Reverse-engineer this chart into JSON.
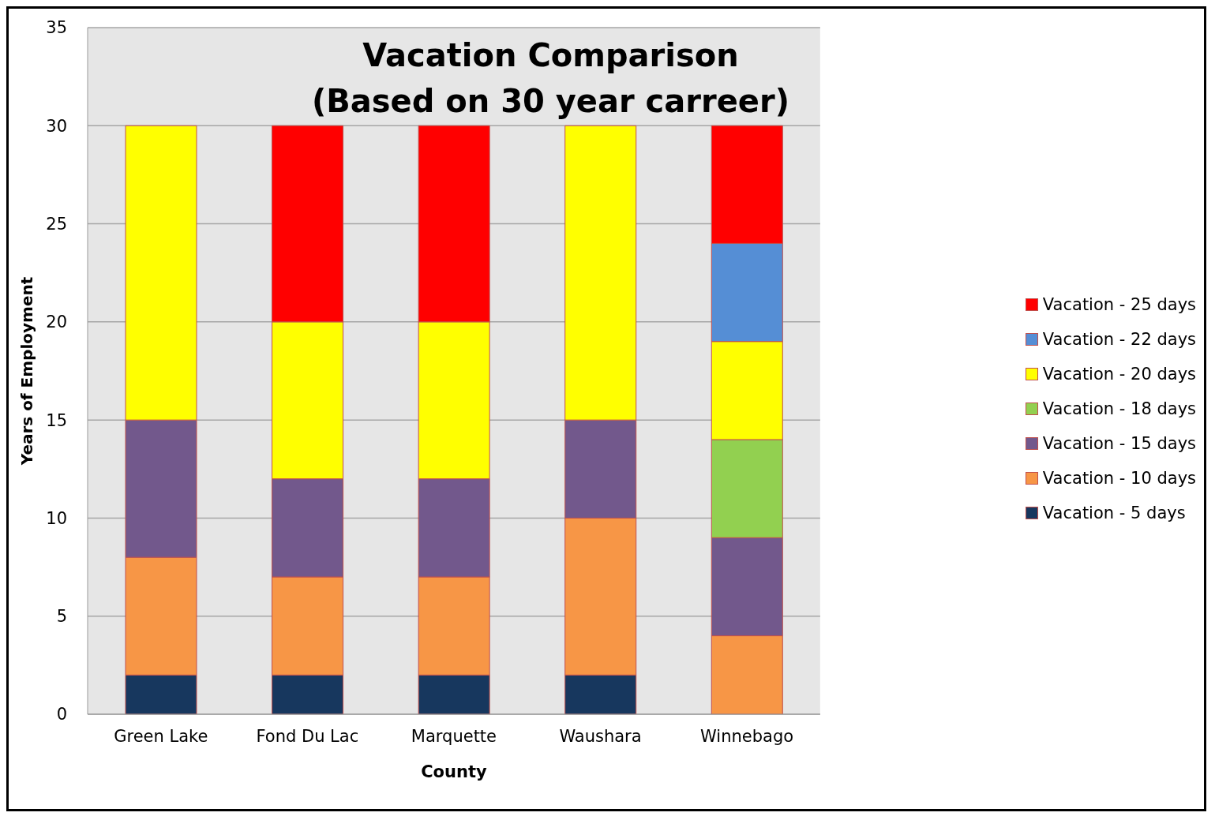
{
  "chart_data": {
    "type": "bar",
    "title": "Vacation Comparison\n(Based on 30 year carreer)",
    "xlabel": "County",
    "ylabel": "Years of Employment",
    "categories": [
      "Green Lake",
      "Fond Du Lac",
      "Marquette",
      "Waushara",
      "Winnebago"
    ],
    "stacked": true,
    "ylim": [
      0,
      35
    ],
    "yticks": [
      0,
      5,
      10,
      15,
      20,
      25,
      30,
      35
    ],
    "grid": "y",
    "legend": "right",
    "series": [
      {
        "name": "Vacation - 5 days",
        "color": "#17375e",
        "values": [
          2,
          2,
          2,
          2,
          null
        ]
      },
      {
        "name": "Vacation - 10 days",
        "color": "#f79646",
        "values": [
          6,
          5,
          5,
          8,
          4
        ]
      },
      {
        "name": "Vacation - 15 days",
        "color": "#72588c",
        "values": [
          7,
          5,
          5,
          5,
          5
        ]
      },
      {
        "name": "Vacation - 18 days",
        "color": "#92d050",
        "values": [
          null,
          null,
          null,
          null,
          5
        ]
      },
      {
        "name": "Vacation - 20 days",
        "color": "#ffff00",
        "values": [
          15,
          8,
          8,
          15,
          5
        ]
      },
      {
        "name": "Vacation - 22 days",
        "color": "#558ed5",
        "values": [
          null,
          null,
          null,
          null,
          5
        ]
      },
      {
        "name": "Vacation - 25 days",
        "color": "#ff0000",
        "values": [
          null,
          10,
          10,
          null,
          6
        ]
      }
    ]
  }
}
